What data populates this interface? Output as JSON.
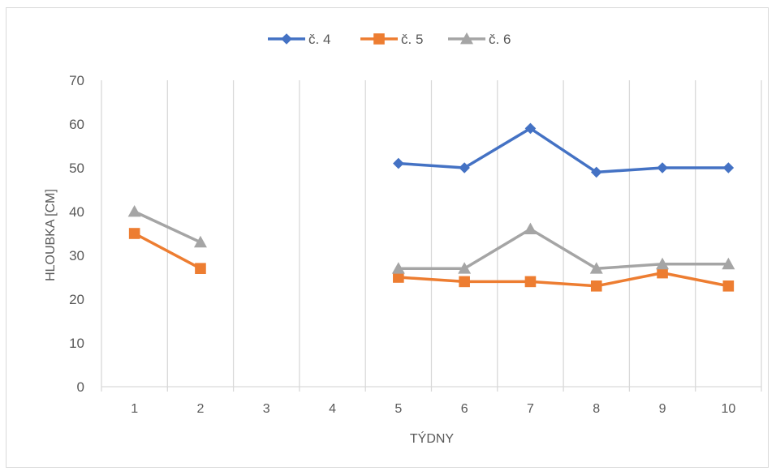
{
  "chart_data": {
    "type": "line",
    "title": "",
    "xlabel": "TÝDNY",
    "ylabel": "HLOUBKA [CM]",
    "categories": [
      "1",
      "2",
      "3",
      "4",
      "5",
      "6",
      "7",
      "8",
      "9",
      "10"
    ],
    "ylim": [
      0,
      70
    ],
    "yticks": [
      "0",
      "10",
      "20",
      "30",
      "40",
      "50",
      "60",
      "70"
    ],
    "grid": "vertical",
    "legend": "top",
    "series": [
      {
        "name": "č. 4",
        "color": "#4472c4",
        "marker": "diamond",
        "values": [
          null,
          null,
          null,
          null,
          51,
          50,
          59,
          49,
          50,
          50
        ]
      },
      {
        "name": "č. 5",
        "color": "#ed7d31",
        "marker": "square",
        "values": [
          35,
          27,
          null,
          null,
          25,
          24,
          24,
          23,
          26,
          23
        ]
      },
      {
        "name": "č. 6",
        "color": "#a5a5a5",
        "marker": "triangle",
        "values": [
          40,
          33,
          null,
          null,
          27,
          27,
          36,
          27,
          28,
          28
        ]
      }
    ]
  }
}
